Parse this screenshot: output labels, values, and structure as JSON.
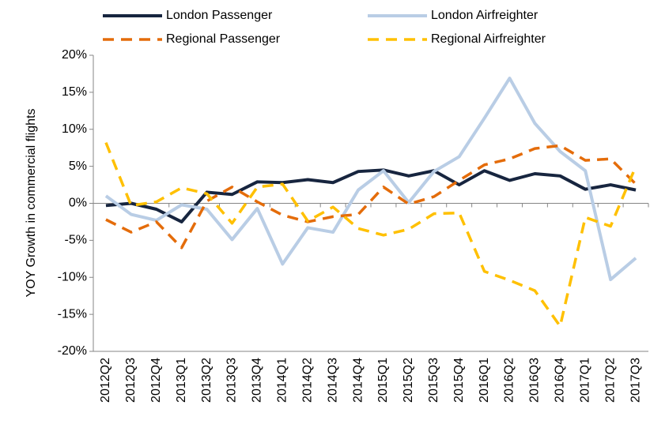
{
  "chart_data": {
    "type": "line",
    "y_label": "YOY Growth in commercial flights",
    "categories": [
      "2012Q2",
      "2012Q3",
      "2012Q4",
      "2013Q1",
      "2013Q2",
      "2013Q3",
      "2013Q4",
      "2014Q1",
      "2014Q2",
      "2014Q3",
      "2014Q4",
      "2015Q1",
      "2015Q2",
      "2015Q3",
      "2015Q4",
      "2016Q1",
      "2016Q2",
      "2016Q3",
      "2016Q4",
      "2017Q1",
      "2017Q2",
      "2017Q3"
    ],
    "series": [
      {
        "name": "London Passenger",
        "color": "#17253f",
        "dash": "solid",
        "values": [
          -0.3,
          0,
          -0.8,
          -2.5,
          1.5,
          1.2,
          2.9,
          2.8,
          3.2,
          2.8,
          4.3,
          4.5,
          3.7,
          4.4,
          2.5,
          4.4,
          3.1,
          4.0,
          3.7,
          1.9,
          2.5,
          1.8
        ]
      },
      {
        "name": "London Airfreighter",
        "color": "#b9cde5",
        "dash": "solid",
        "values": [
          1.0,
          -1.5,
          -2.3,
          -0.2,
          -0.8,
          -4.9,
          -0.7,
          -8.2,
          -3.3,
          -3.9,
          1.8,
          4.4,
          0.1,
          4.3,
          6.3,
          11.5,
          16.9,
          10.8,
          7.0,
          4.4,
          -10.3,
          -7.4
        ]
      },
      {
        "name": "Regional Passenger",
        "color": "#e46c0a",
        "dash": "dashed",
        "values": [
          -2.2,
          -3.9,
          -2.5,
          -6.0,
          0.3,
          2.2,
          0.2,
          -1.6,
          -2.5,
          -1.8,
          -1.5,
          2.2,
          -0.1,
          0.9,
          3.1,
          5.2,
          6.0,
          7.4,
          7.8,
          5.8,
          6.0,
          2.6
        ]
      },
      {
        "name": "Regional Airfreighter",
        "color": "#ffc000",
        "dash": "dashed",
        "values": [
          8.2,
          -0.3,
          0.2,
          2.1,
          1.3,
          -2.7,
          2.2,
          2.6,
          -2.4,
          -0.5,
          -3.4,
          -4.3,
          -3.5,
          -1.4,
          -1.3,
          -9.2,
          -10.4,
          -11.8,
          -16.6,
          -1.9,
          -3.1,
          5.0
        ]
      }
    ],
    "ylim": [
      -20,
      20
    ],
    "yticks": [
      {
        "value": -20,
        "label": "-20%"
      },
      {
        "value": -15,
        "label": "-15%"
      },
      {
        "value": -10,
        "label": "-10%"
      },
      {
        "value": -5,
        "label": "-5%"
      },
      {
        "value": 0,
        "label": "0%"
      },
      {
        "value": 5,
        "label": "5%"
      },
      {
        "value": 10,
        "label": "10%"
      },
      {
        "value": 15,
        "label": "15%"
      },
      {
        "value": 20,
        "label": "20%"
      }
    ],
    "legend": "top",
    "grid": false
  }
}
